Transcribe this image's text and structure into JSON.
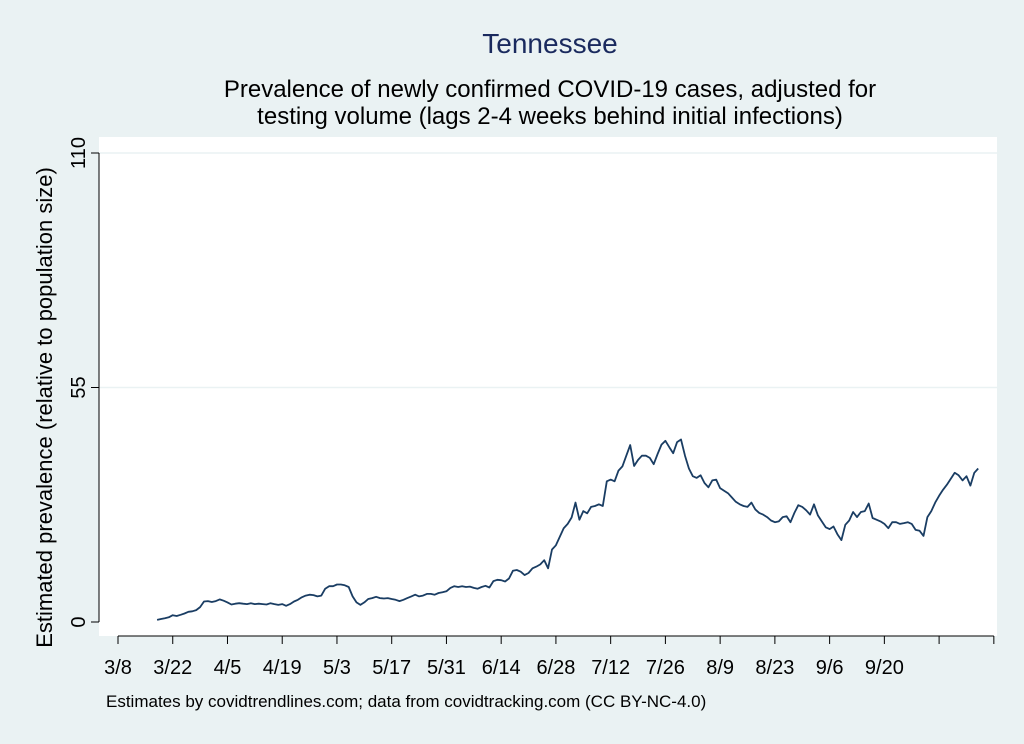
{
  "title": "Tennessee",
  "subtitle_lines": [
    "Prevalence of newly confirmed COVID-19 cases, adjusted for",
    "testing volume (lags 2-4 weeks behind initial infections)"
  ],
  "footnote": "Estimates by covidtrendlines.com; data from covidtracking.com (CC BY-NC-4.0)",
  "colors": {
    "background": "#eaf2f3",
    "plot_background": "#ffffff",
    "line": "#1a3d63",
    "grid": "#eaf2f3",
    "title": "#1a2a5e"
  },
  "chart_data": {
    "type": "line",
    "title": "Tennessee",
    "xlabel": "",
    "ylabel": "Estimated prevalence (relative to population size)",
    "y_ticks": [
      0,
      55,
      110
    ],
    "ylim": [
      0,
      110
    ],
    "grid": true,
    "x_ticks": [
      {
        "label": "3/8",
        "day": 0
      },
      {
        "label": "3/22",
        "day": 14
      },
      {
        "label": "4/5",
        "day": 28
      },
      {
        "label": "4/19",
        "day": 42
      },
      {
        "label": "5/3",
        "day": 56
      },
      {
        "label": "5/17",
        "day": 70
      },
      {
        "label": "5/31",
        "day": 84
      },
      {
        "label": "6/14",
        "day": 98
      },
      {
        "label": "6/28",
        "day": 112
      },
      {
        "label": "7/12",
        "day": 126
      },
      {
        "label": "7/26",
        "day": 140
      },
      {
        "label": "8/9",
        "day": 154
      },
      {
        "label": "8/23",
        "day": 168
      },
      {
        "label": "9/6",
        "day": 182
      },
      {
        "label": "9/20",
        "day": 196
      },
      {
        "label": "",
        "day": 210
      },
      {
        "label": "",
        "day": 224
      }
    ],
    "series": [
      {
        "points": [
          [
            10,
            0.5
          ],
          [
            11,
            0.7
          ],
          [
            12,
            0.9
          ],
          [
            13,
            1.1
          ],
          [
            14,
            1.6
          ],
          [
            15,
            1.4
          ],
          [
            16,
            1.7
          ],
          [
            17,
            2.0
          ],
          [
            18,
            2.4
          ],
          [
            19,
            2.5
          ],
          [
            20,
            2.8
          ],
          [
            21,
            3.5
          ],
          [
            22,
            4.8
          ],
          [
            23,
            4.9
          ],
          [
            24,
            4.7
          ],
          [
            25,
            4.9
          ],
          [
            26,
            5.3
          ],
          [
            27,
            5.0
          ],
          [
            28,
            4.6
          ],
          [
            29,
            4.1
          ],
          [
            30,
            4.3
          ],
          [
            31,
            4.4
          ],
          [
            32,
            4.3
          ],
          [
            33,
            4.2
          ],
          [
            34,
            4.4
          ],
          [
            35,
            4.2
          ],
          [
            36,
            4.3
          ],
          [
            37,
            4.2
          ],
          [
            38,
            4.1
          ],
          [
            39,
            4.4
          ],
          [
            40,
            4.2
          ],
          [
            41,
            4.0
          ],
          [
            42,
            4.2
          ],
          [
            43,
            3.8
          ],
          [
            44,
            4.2
          ],
          [
            45,
            4.8
          ],
          [
            46,
            5.2
          ],
          [
            47,
            5.8
          ],
          [
            48,
            6.2
          ],
          [
            49,
            6.4
          ],
          [
            50,
            6.3
          ],
          [
            51,
            6.0
          ],
          [
            52,
            6.2
          ],
          [
            53,
            7.8
          ],
          [
            54,
            8.4
          ],
          [
            55,
            8.4
          ],
          [
            56,
            8.8
          ],
          [
            57,
            8.8
          ],
          [
            58,
            8.6
          ],
          [
            59,
            8.2
          ],
          [
            60,
            6.0
          ],
          [
            61,
            4.6
          ],
          [
            62,
            4.0
          ],
          [
            63,
            4.6
          ],
          [
            64,
            5.4
          ],
          [
            65,
            5.6
          ],
          [
            66,
            5.9
          ],
          [
            67,
            5.6
          ],
          [
            68,
            5.5
          ],
          [
            69,
            5.6
          ],
          [
            70,
            5.4
          ],
          [
            71,
            5.2
          ],
          [
            72,
            4.9
          ],
          [
            73,
            5.2
          ],
          [
            74,
            5.6
          ],
          [
            75,
            6.0
          ],
          [
            76,
            6.4
          ],
          [
            77,
            6.0
          ],
          [
            78,
            6.2
          ],
          [
            79,
            6.6
          ],
          [
            80,
            6.6
          ],
          [
            81,
            6.4
          ],
          [
            82,
            6.8
          ],
          [
            83,
            7.0
          ],
          [
            84,
            7.2
          ],
          [
            85,
            8.0
          ],
          [
            86,
            8.4
          ],
          [
            87,
            8.2
          ],
          [
            88,
            8.4
          ],
          [
            89,
            8.2
          ],
          [
            90,
            8.3
          ],
          [
            91,
            8.0
          ],
          [
            92,
            7.8
          ],
          [
            93,
            8.2
          ],
          [
            94,
            8.5
          ],
          [
            95,
            8.1
          ],
          [
            96,
            9.6
          ],
          [
            97,
            9.9
          ],
          [
            98,
            9.8
          ],
          [
            99,
            9.5
          ],
          [
            100,
            10.2
          ],
          [
            101,
            12.0
          ],
          [
            102,
            12.2
          ],
          [
            103,
            11.8
          ],
          [
            104,
            11.0
          ],
          [
            105,
            11.5
          ],
          [
            106,
            12.6
          ],
          [
            107,
            13.0
          ],
          [
            108,
            13.5
          ],
          [
            109,
            14.5
          ],
          [
            110,
            12.6
          ],
          [
            111,
            17.0
          ],
          [
            112,
            18.0
          ],
          [
            113,
            20.0
          ],
          [
            114,
            22.0
          ],
          [
            115,
            23.0
          ],
          [
            116,
            24.5
          ],
          [
            117,
            28.0
          ],
          [
            118,
            24.0
          ],
          [
            119,
            26.0
          ],
          [
            120,
            25.5
          ],
          [
            121,
            27.0
          ],
          [
            122,
            27.2
          ],
          [
            123,
            27.6
          ],
          [
            124,
            27.2
          ],
          [
            125,
            33.0
          ],
          [
            126,
            33.4
          ],
          [
            127,
            33.0
          ],
          [
            128,
            35.5
          ],
          [
            129,
            36.5
          ],
          [
            130,
            39.0
          ],
          [
            131,
            41.5
          ],
          [
            132,
            36.6
          ],
          [
            133,
            38.0
          ],
          [
            134,
            39.0
          ],
          [
            135,
            39.0
          ],
          [
            136,
            38.5
          ],
          [
            137,
            37.0
          ],
          [
            138,
            39.4
          ],
          [
            139,
            41.6
          ],
          [
            140,
            42.5
          ],
          [
            141,
            41.0
          ],
          [
            142,
            39.6
          ],
          [
            143,
            42.2
          ],
          [
            144,
            42.8
          ],
          [
            145,
            39.0
          ],
          [
            146,
            36.0
          ],
          [
            147,
            34.2
          ],
          [
            148,
            33.8
          ],
          [
            149,
            34.4
          ],
          [
            150,
            32.6
          ],
          [
            151,
            31.6
          ],
          [
            152,
            33.2
          ],
          [
            153,
            33.4
          ],
          [
            154,
            31.4
          ],
          [
            155,
            30.8
          ],
          [
            156,
            30.2
          ],
          [
            157,
            29.2
          ],
          [
            158,
            28.2
          ],
          [
            159,
            27.6
          ],
          [
            160,
            27.2
          ],
          [
            161,
            27.0
          ],
          [
            162,
            28.0
          ],
          [
            163,
            26.4
          ],
          [
            164,
            25.6
          ],
          [
            165,
            25.2
          ],
          [
            166,
            24.6
          ],
          [
            167,
            23.8
          ],
          [
            168,
            23.4
          ],
          [
            169,
            23.6
          ],
          [
            170,
            24.6
          ],
          [
            171,
            24.8
          ],
          [
            172,
            23.4
          ],
          [
            173,
            25.6
          ],
          [
            174,
            27.4
          ],
          [
            175,
            27.0
          ],
          [
            176,
            26.2
          ],
          [
            177,
            25.2
          ],
          [
            178,
            27.6
          ],
          [
            179,
            25.0
          ],
          [
            180,
            23.6
          ],
          [
            181,
            22.2
          ],
          [
            182,
            21.8
          ],
          [
            183,
            22.4
          ],
          [
            184,
            20.6
          ],
          [
            185,
            19.2
          ],
          [
            186,
            22.8
          ],
          [
            187,
            23.8
          ],
          [
            188,
            25.8
          ],
          [
            189,
            24.6
          ],
          [
            190,
            25.8
          ],
          [
            191,
            26.0
          ],
          [
            192,
            27.8
          ],
          [
            193,
            24.4
          ],
          [
            194,
            24.0
          ],
          [
            195,
            23.6
          ],
          [
            196,
            23.0
          ],
          [
            197,
            22.0
          ],
          [
            198,
            23.4
          ],
          [
            199,
            23.4
          ],
          [
            200,
            23.0
          ],
          [
            201,
            23.2
          ],
          [
            202,
            23.4
          ],
          [
            203,
            23.0
          ],
          [
            204,
            21.6
          ],
          [
            205,
            21.4
          ],
          [
            206,
            20.2
          ],
          [
            207,
            24.6
          ],
          [
            208,
            26.0
          ],
          [
            209,
            28.0
          ],
          [
            210,
            29.6
          ],
          [
            211,
            31.0
          ],
          [
            212,
            32.2
          ],
          [
            213,
            33.6
          ],
          [
            214,
            35.0
          ],
          [
            215,
            34.4
          ],
          [
            216,
            33.2
          ],
          [
            217,
            34.2
          ],
          [
            218,
            32.0
          ],
          [
            219,
            35.0
          ],
          [
            220,
            36.0
          ]
        ]
      }
    ]
  }
}
